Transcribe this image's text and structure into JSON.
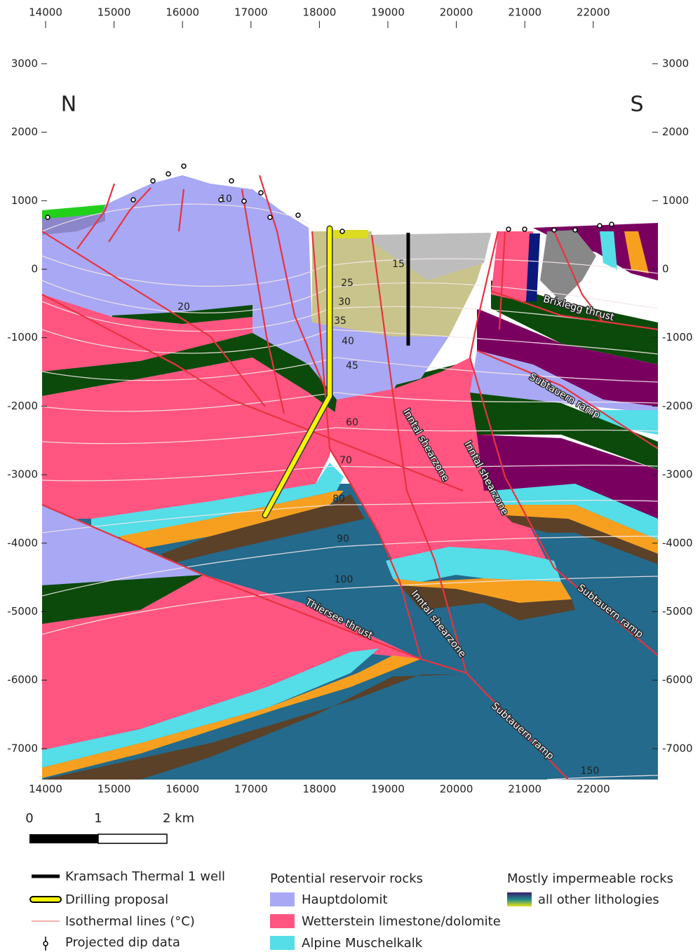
{
  "x_axis": {
    "ticks": [
      14000,
      15000,
      16000,
      17000,
      18000,
      19000,
      20000,
      21000,
      22000
    ]
  },
  "y_axis": {
    "ticks": [
      3000,
      2000,
      1000,
      0,
      -1000,
      -2000,
      -3000,
      -4000,
      -5000,
      -6000,
      -7000
    ]
  },
  "orientation": {
    "left": "N",
    "right": "S"
  },
  "isotherm_labels": [
    10,
    15,
    20,
    25,
    30,
    35,
    40,
    45,
    60,
    70,
    80,
    90,
    100,
    150
  ],
  "structures": {
    "brixlegg": "Brixlegg thrust",
    "subtauern": [
      "Subtauern ramp",
      "Subtauern ramp",
      "Subtauern ramp"
    ],
    "inntal": [
      "Inntal shearzone",
      "Inntal shearzone",
      "Inntal shearzone"
    ],
    "thiersee": "Thiersee thrust"
  },
  "scale_bar": {
    "labels": [
      "0",
      "1",
      "2 km"
    ]
  },
  "legend": {
    "symbols": [
      "Kramsach Thermal 1 well",
      "Drilling proposal",
      "Isothermal lines (°C)",
      "Projected dip data"
    ],
    "reservoir": {
      "title": "Potential reservoir rocks",
      "items": [
        "Hauptdolomit",
        "Wetterstein limestone/dolomite",
        "Alpine Muschelkalk"
      ]
    },
    "impermeable": {
      "title": "Mostly impermeable rocks",
      "items": [
        "all other lithologies"
      ]
    }
  }
}
